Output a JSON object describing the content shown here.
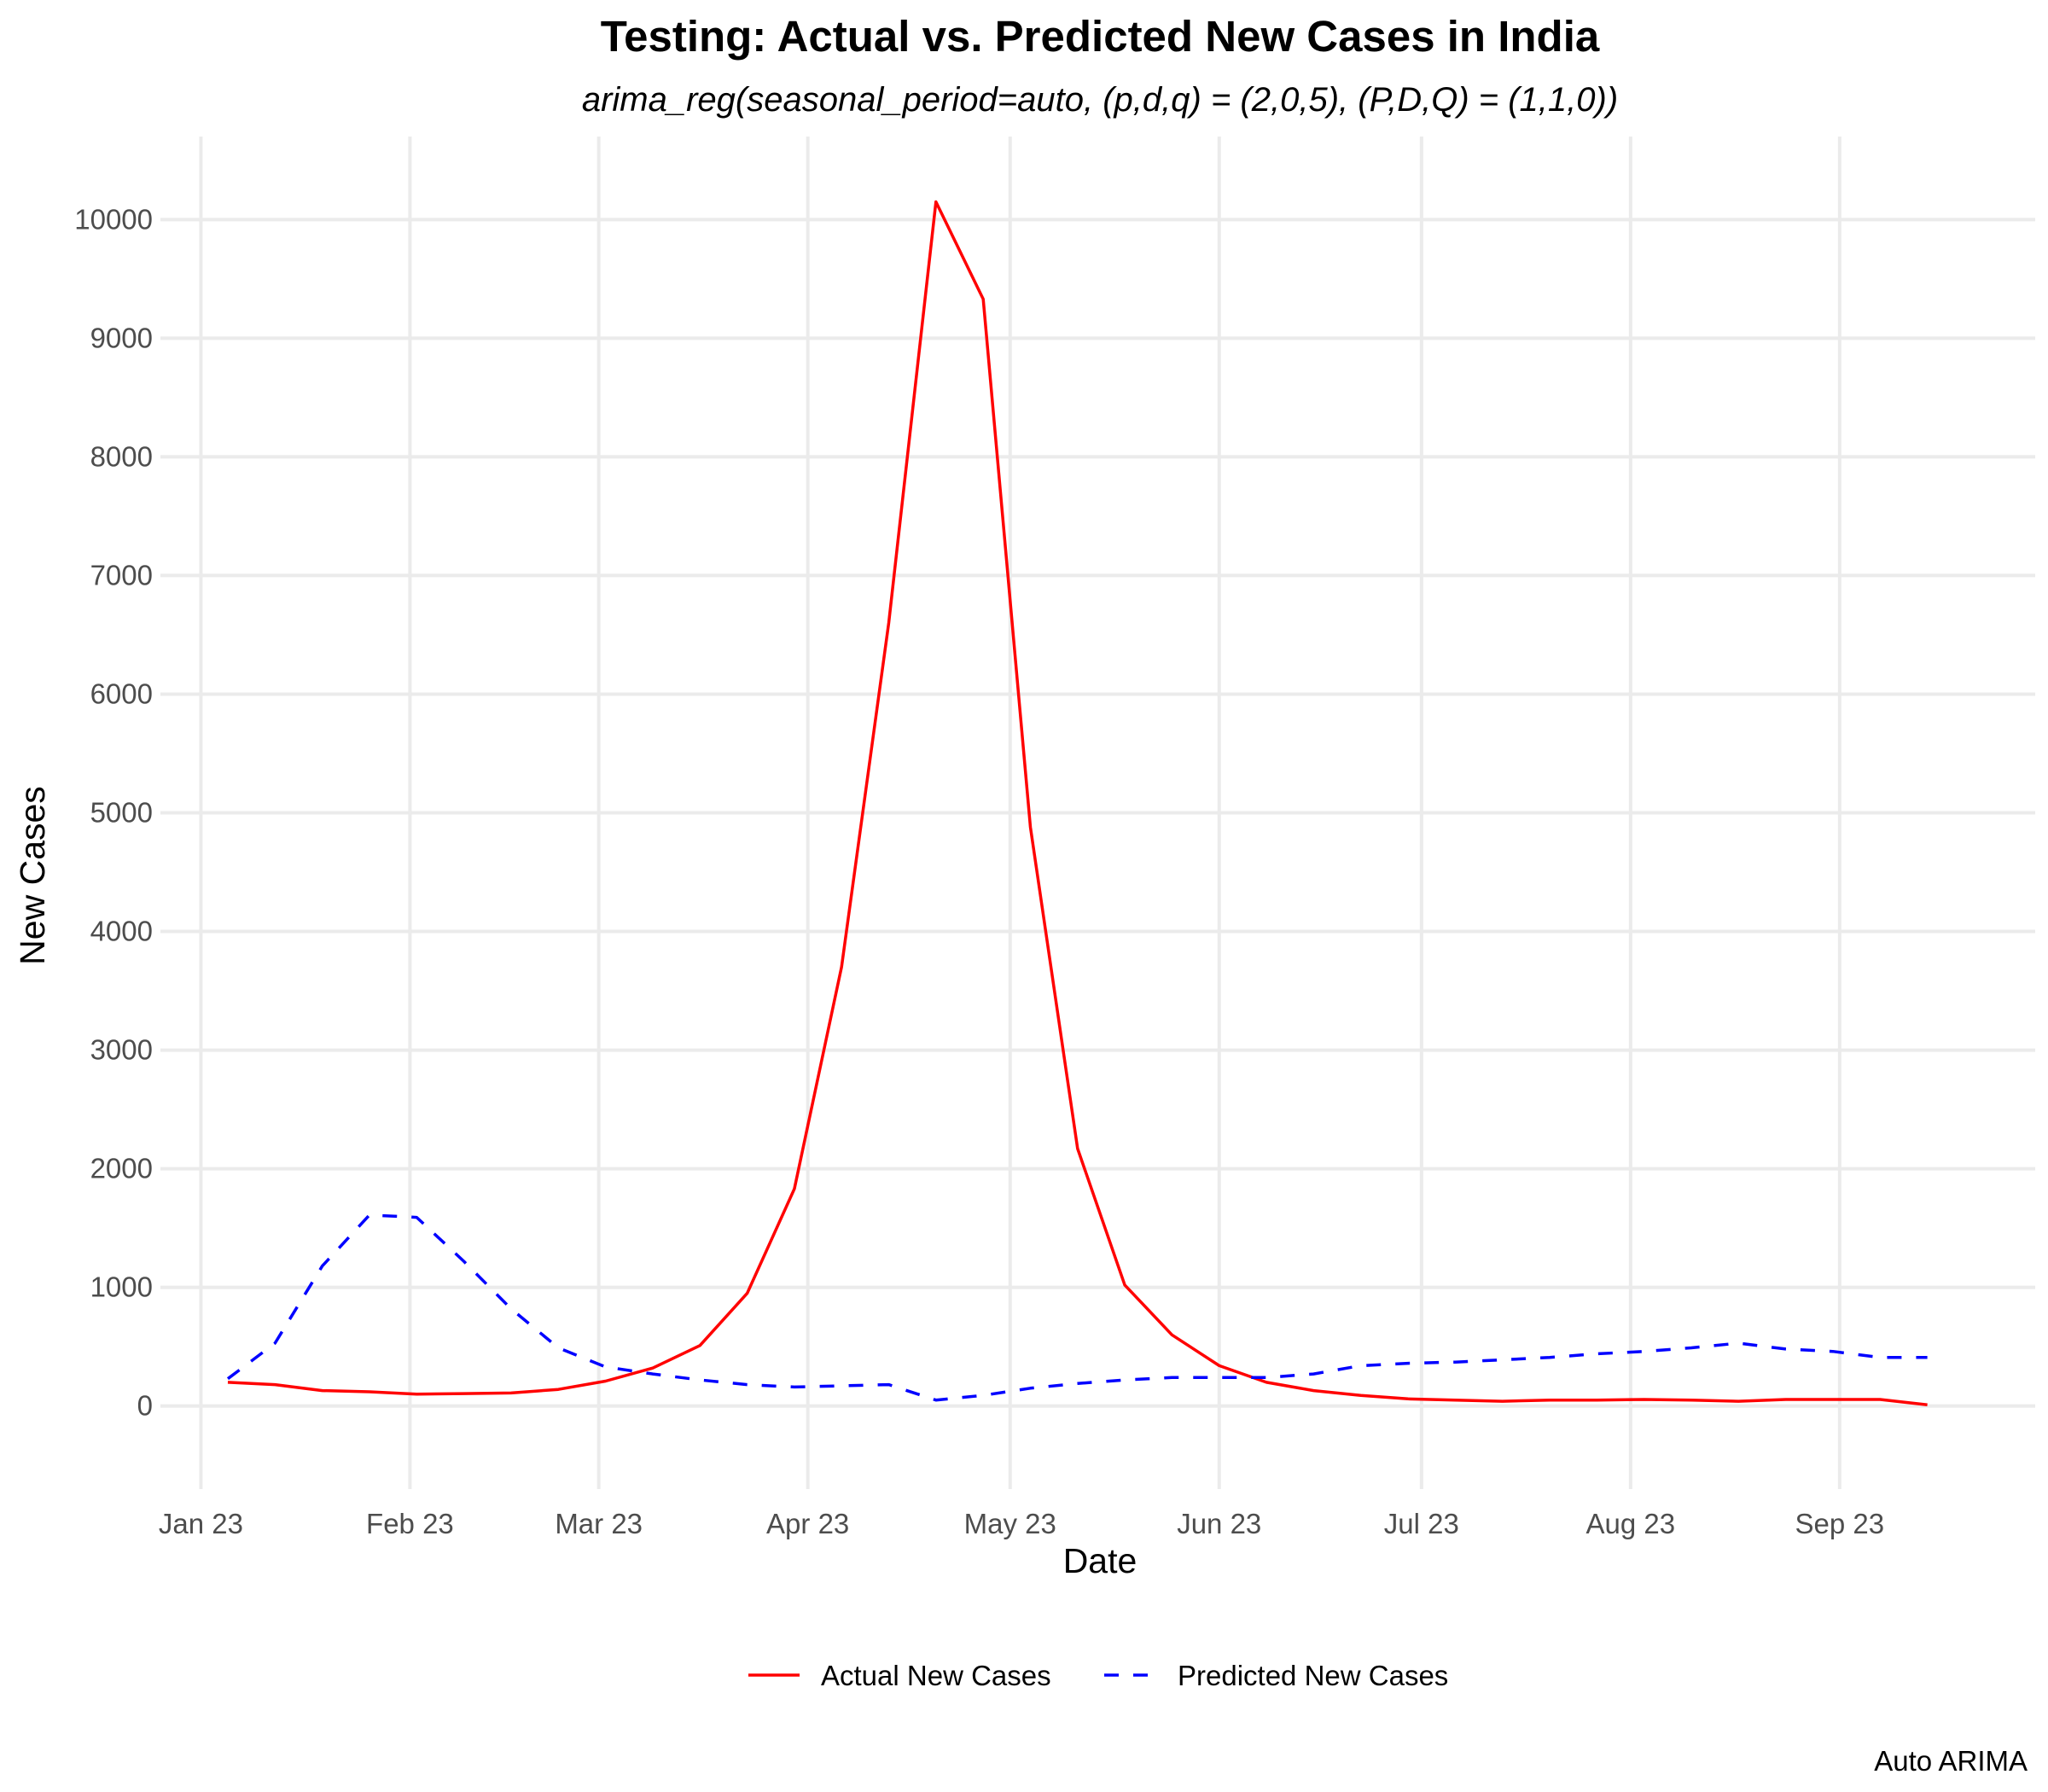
{
  "chart_data": {
    "type": "line",
    "title": "Testing: Actual vs. Predicted New Cases in India",
    "subtitle": "arima_reg(seasonal_period=auto, (p,d,q) = (2,0,5), (P,D,Q) = (1,1,0))",
    "xlabel": "Date",
    "ylabel": "New Cases",
    "caption": "Auto ARIMA",
    "xlim": [
      "2022-12-26",
      "2023-09-30"
    ],
    "ylim": [
      -700,
      10700
    ],
    "x_ticks": [
      {
        "date": "2023-01-01",
        "label": "Jan 23"
      },
      {
        "date": "2023-02-01",
        "label": "Feb 23"
      },
      {
        "date": "2023-03-01",
        "label": "Mar 23"
      },
      {
        "date": "2023-04-01",
        "label": "Apr 23"
      },
      {
        "date": "2023-05-01",
        "label": "May 23"
      },
      {
        "date": "2023-06-01",
        "label": "Jun 23"
      },
      {
        "date": "2023-07-01",
        "label": "Jul 23"
      },
      {
        "date": "2023-08-01",
        "label": "Aug 23"
      },
      {
        "date": "2023-09-01",
        "label": "Sep 23"
      }
    ],
    "y_ticks": [
      0,
      1000,
      2000,
      3000,
      4000,
      5000,
      6000,
      7000,
      8000,
      9000,
      10000
    ],
    "grid": true,
    "legend_position": "bottom",
    "x": [
      "2023-01-05",
      "2023-01-12",
      "2023-01-19",
      "2023-01-26",
      "2023-02-02",
      "2023-02-09",
      "2023-02-16",
      "2023-02-23",
      "2023-03-02",
      "2023-03-09",
      "2023-03-16",
      "2023-03-23",
      "2023-03-30",
      "2023-04-06",
      "2023-04-13",
      "2023-04-20",
      "2023-04-27",
      "2023-05-04",
      "2023-05-11",
      "2023-05-18",
      "2023-05-25",
      "2023-06-01",
      "2023-06-08",
      "2023-06-15",
      "2023-06-22",
      "2023-06-29",
      "2023-07-06",
      "2023-07-13",
      "2023-07-20",
      "2023-07-27",
      "2023-08-03",
      "2023-08-10",
      "2023-08-17",
      "2023-08-24",
      "2023-08-31",
      "2023-09-07",
      "2023-09-14"
    ],
    "series": [
      {
        "name": "Actual New Cases",
        "color": "#ff0000",
        "dash": "solid",
        "values": [
          200,
          180,
          130,
          120,
          100,
          105,
          110,
          140,
          210,
          320,
          510,
          950,
          1830,
          3700,
          6600,
          10150,
          9330,
          4880,
          2170,
          1020,
          600,
          340,
          200,
          130,
          90,
          60,
          50,
          40,
          50,
          50,
          55,
          50,
          40,
          55,
          55,
          55,
          10
        ]
      },
      {
        "name": "Predicted New Cases",
        "color": "#0000ff",
        "dash": "dashed",
        "values": [
          230,
          530,
          1180,
          1610,
          1590,
          1220,
          820,
          490,
          330,
          270,
          220,
          180,
          160,
          170,
          180,
          50,
          90,
          150,
          190,
          220,
          240,
          240,
          240,
          270,
          340,
          360,
          370,
          390,
          410,
          440,
          460,
          490,
          530,
          480,
          460,
          410,
          410
        ]
      }
    ]
  }
}
